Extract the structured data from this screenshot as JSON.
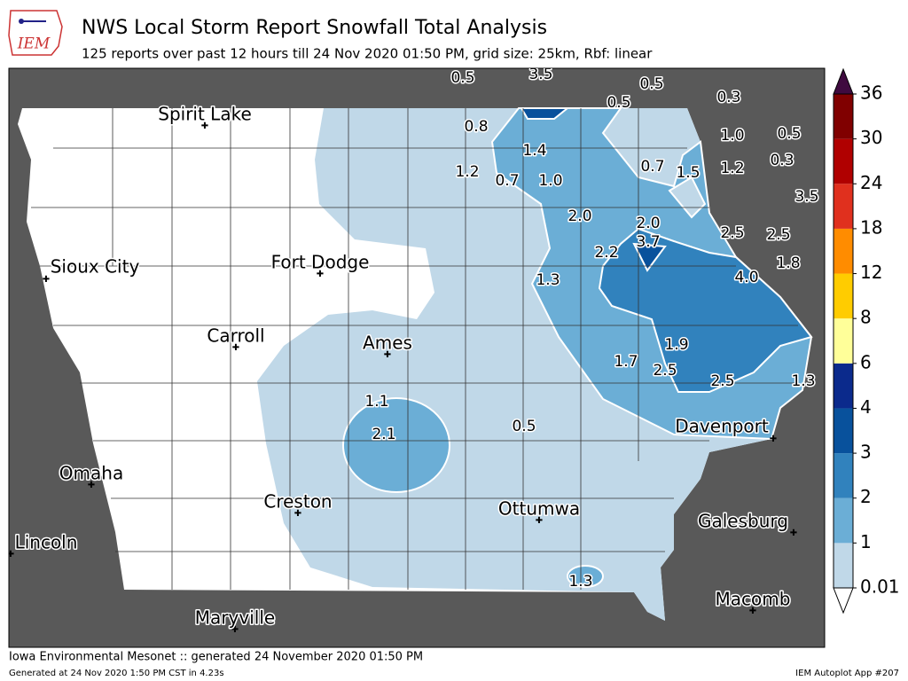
{
  "header": {
    "logo_text": "IEM",
    "title": "NWS Local Storm Report Snowfall Total Analysis",
    "subtitle": "125 reports over past 12 hours till 24 Nov 2020 01:50 PM, grid size: 25km, Rbf: linear"
  },
  "map": {
    "cities": [
      "Spirit Lake",
      "Sioux City",
      "Fort Dodge",
      "Carroll",
      "Ames",
      "Davenport",
      "Omaha",
      "Creston",
      "Ottumwa",
      "Galesburg",
      "Lincoln",
      "Macomb",
      "Maryville"
    ],
    "reports": [
      "0.5",
      "3.5",
      "0.5",
      "0.5",
      "0.3",
      "0.8",
      "1.4",
      "1.0",
      "0.5",
      "0.3",
      "1.2",
      "0.7",
      "1.0",
      "0.7",
      "1.5",
      "1.2",
      "3.5",
      "2.0",
      "2.0",
      "3.7",
      "2.5",
      "2.5",
      "2.2",
      "1.8",
      "1.3",
      "4.0",
      "1.9",
      "1.7",
      "2.5",
      "2.5",
      "1.3",
      "1.1",
      "2.1",
      "0.5",
      "1.3"
    ]
  },
  "colorbar": {
    "ticks": [
      0.01,
      1,
      2,
      3,
      4,
      6,
      8,
      12,
      18,
      24,
      30,
      36
    ],
    "colors": [
      "#c0d8e8",
      "#6baed6",
      "#3182bd",
      "#08519c",
      "#0b2a8c",
      "#ffff99",
      "#ffcc00",
      "#ff8c00",
      "#e0301e",
      "#b00000",
      "#800000"
    ],
    "over_color": "#3f0a3f",
    "under_color": "#ffffff"
  },
  "footer": {
    "left": "Iowa Environmental Mesonet :: generated 24 November 2020 01:50 PM",
    "generated": "Generated at 24 Nov 2020 1:50 PM CST in 4.23s",
    "right": "IEM Autoplot App #207"
  }
}
